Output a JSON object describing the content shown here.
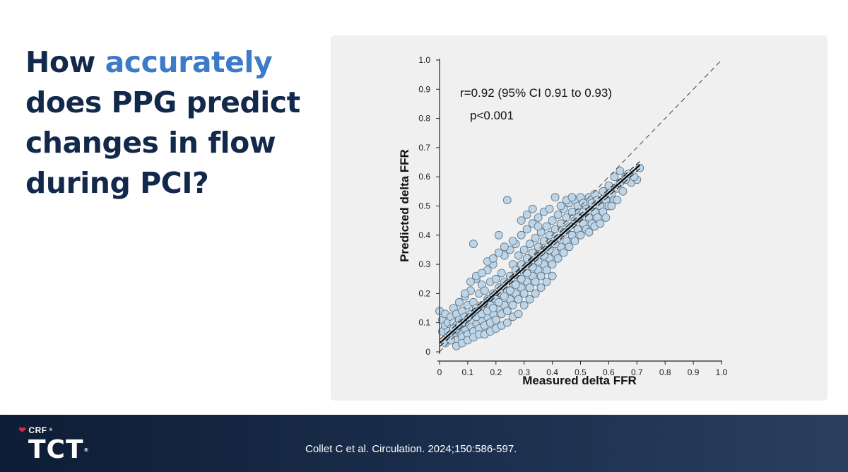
{
  "slide": {
    "title_part1": "How ",
    "title_accent": "accurately",
    "title_part2": " does PPG predict changes in flow during PCI?",
    "accent_color": "#3b7bc8",
    "title_color": "#13294b"
  },
  "footer": {
    "crf_label": "CRF",
    "crf_mark": "®",
    "tct_label": "TCT",
    "tct_mark": "®",
    "citation": "Collet C et al. Circulation. 2024;150:586-597."
  },
  "chart_data": {
    "type": "scatter",
    "xlabel": "Measured delta FFR",
    "ylabel": "Predicted delta FFR",
    "xlim": [
      0,
      1.0
    ],
    "ylim": [
      0,
      1.0
    ],
    "x_ticks": [
      "0",
      "0.1",
      "0.2",
      "0.3",
      "0.4",
      "0.5",
      "0.6",
      "0.7",
      "0.8",
      "0.9",
      "1.0"
    ],
    "y_ticks": [
      "0",
      "0.1",
      "0.2",
      "0.3",
      "0.4",
      "0.5",
      "0.6",
      "0.7",
      "0.8",
      "0.9",
      "1.0"
    ],
    "grid": false,
    "annotations": [
      "r=0.92 (95% CI 0.91 to 0.93)",
      "p<0.001"
    ],
    "point_color": "#bcd5e8",
    "identity_line": {
      "x": [
        0,
        1.0
      ],
      "y": [
        0,
        1.0
      ],
      "style": "dashed"
    },
    "regression_line": {
      "x": [
        0,
        0.71
      ],
      "y": [
        0.03,
        0.64
      ]
    },
    "points": [
      [
        0.0,
        0.14
      ],
      [
        0.01,
        0.11
      ],
      [
        0.01,
        0.07
      ],
      [
        0.02,
        0.09
      ],
      [
        0.02,
        0.13
      ],
      [
        0.03,
        0.05
      ],
      [
        0.03,
        0.1
      ],
      [
        0.04,
        0.08
      ],
      [
        0.04,
        0.12
      ],
      [
        0.05,
        0.06
      ],
      [
        0.05,
        0.1
      ],
      [
        0.05,
        0.15
      ],
      [
        0.06,
        0.04
      ],
      [
        0.06,
        0.09
      ],
      [
        0.06,
        0.13
      ],
      [
        0.07,
        0.07
      ],
      [
        0.07,
        0.11
      ],
      [
        0.07,
        0.17
      ],
      [
        0.08,
        0.05
      ],
      [
        0.08,
        0.1
      ],
      [
        0.08,
        0.14
      ],
      [
        0.09,
        0.08
      ],
      [
        0.09,
        0.12
      ],
      [
        0.09,
        0.19
      ],
      [
        0.1,
        0.06
      ],
      [
        0.1,
        0.11
      ],
      [
        0.1,
        0.16
      ],
      [
        0.11,
        0.09
      ],
      [
        0.11,
        0.13
      ],
      [
        0.11,
        0.21
      ],
      [
        0.12,
        0.07
      ],
      [
        0.12,
        0.12
      ],
      [
        0.12,
        0.17
      ],
      [
        0.13,
        0.1
      ],
      [
        0.13,
        0.15
      ],
      [
        0.13,
        0.25
      ],
      [
        0.14,
        0.08
      ],
      [
        0.14,
        0.14
      ],
      [
        0.14,
        0.2
      ],
      [
        0.15,
        0.11
      ],
      [
        0.15,
        0.16
      ],
      [
        0.15,
        0.23
      ],
      [
        0.16,
        0.09
      ],
      [
        0.16,
        0.15
      ],
      [
        0.16,
        0.21
      ],
      [
        0.17,
        0.12
      ],
      [
        0.17,
        0.18
      ],
      [
        0.17,
        0.28
      ],
      [
        0.18,
        0.1
      ],
      [
        0.18,
        0.16
      ],
      [
        0.18,
        0.24
      ],
      [
        0.19,
        0.13
      ],
      [
        0.19,
        0.2
      ],
      [
        0.19,
        0.3
      ],
      [
        0.2,
        0.11
      ],
      [
        0.2,
        0.18
      ],
      [
        0.2,
        0.25
      ],
      [
        0.21,
        0.15
      ],
      [
        0.21,
        0.22
      ],
      [
        0.21,
        0.4
      ],
      [
        0.22,
        0.13
      ],
      [
        0.22,
        0.2
      ],
      [
        0.22,
        0.27
      ],
      [
        0.23,
        0.16
      ],
      [
        0.23,
        0.24
      ],
      [
        0.23,
        0.33
      ],
      [
        0.24,
        0.14
      ],
      [
        0.24,
        0.21
      ],
      [
        0.24,
        0.52
      ],
      [
        0.25,
        0.18
      ],
      [
        0.25,
        0.26
      ],
      [
        0.25,
        0.35
      ],
      [
        0.26,
        0.16
      ],
      [
        0.26,
        0.23
      ],
      [
        0.26,
        0.3
      ],
      [
        0.27,
        0.2
      ],
      [
        0.27,
        0.28
      ],
      [
        0.27,
        0.37
      ],
      [
        0.28,
        0.18
      ],
      [
        0.28,
        0.25
      ],
      [
        0.28,
        0.33
      ],
      [
        0.29,
        0.22
      ],
      [
        0.29,
        0.3
      ],
      [
        0.29,
        0.4
      ],
      [
        0.3,
        0.2
      ],
      [
        0.3,
        0.27
      ],
      [
        0.3,
        0.35
      ],
      [
        0.31,
        0.24
      ],
      [
        0.31,
        0.32
      ],
      [
        0.31,
        0.42
      ],
      [
        0.32,
        0.22
      ],
      [
        0.32,
        0.29
      ],
      [
        0.32,
        0.37
      ],
      [
        0.33,
        0.26
      ],
      [
        0.33,
        0.34
      ],
      [
        0.33,
        0.44
      ],
      [
        0.34,
        0.24
      ],
      [
        0.34,
        0.31
      ],
      [
        0.34,
        0.39
      ],
      [
        0.35,
        0.28
      ],
      [
        0.35,
        0.36
      ],
      [
        0.35,
        0.46
      ],
      [
        0.36,
        0.26
      ],
      [
        0.36,
        0.33
      ],
      [
        0.36,
        0.41
      ],
      [
        0.37,
        0.3
      ],
      [
        0.37,
        0.38
      ],
      [
        0.37,
        0.48
      ],
      [
        0.38,
        0.28
      ],
      [
        0.38,
        0.35
      ],
      [
        0.38,
        0.43
      ],
      [
        0.39,
        0.32
      ],
      [
        0.39,
        0.4
      ],
      [
        0.4,
        0.3
      ],
      [
        0.4,
        0.37
      ],
      [
        0.4,
        0.45
      ],
      [
        0.41,
        0.34
      ],
      [
        0.41,
        0.42
      ],
      [
        0.41,
        0.53
      ],
      [
        0.42,
        0.32
      ],
      [
        0.42,
        0.39
      ],
      [
        0.42,
        0.47
      ],
      [
        0.43,
        0.36
      ],
      [
        0.43,
        0.44
      ],
      [
        0.44,
        0.34
      ],
      [
        0.44,
        0.41
      ],
      [
        0.44,
        0.49
      ],
      [
        0.45,
        0.38
      ],
      [
        0.45,
        0.46
      ],
      [
        0.46,
        0.36
      ],
      [
        0.46,
        0.43
      ],
      [
        0.46,
        0.51
      ],
      [
        0.47,
        0.4
      ],
      [
        0.47,
        0.48
      ],
      [
        0.48,
        0.38
      ],
      [
        0.48,
        0.45
      ],
      [
        0.48,
        0.52
      ],
      [
        0.49,
        0.42
      ],
      [
        0.49,
        0.5
      ],
      [
        0.5,
        0.4
      ],
      [
        0.5,
        0.47
      ],
      [
        0.5,
        0.53
      ],
      [
        0.51,
        0.44
      ],
      [
        0.51,
        0.51
      ],
      [
        0.52,
        0.42
      ],
      [
        0.52,
        0.49
      ],
      [
        0.53,
        0.46
      ],
      [
        0.53,
        0.53
      ],
      [
        0.54,
        0.44
      ],
      [
        0.54,
        0.51
      ],
      [
        0.55,
        0.48
      ],
      [
        0.55,
        0.54
      ],
      [
        0.56,
        0.46
      ],
      [
        0.56,
        0.52
      ],
      [
        0.57,
        0.5
      ],
      [
        0.58,
        0.48
      ],
      [
        0.58,
        0.55
      ],
      [
        0.59,
        0.52
      ],
      [
        0.6,
        0.5
      ],
      [
        0.6,
        0.57
      ],
      [
        0.61,
        0.54
      ],
      [
        0.62,
        0.52
      ],
      [
        0.62,
        0.6
      ],
      [
        0.63,
        0.56
      ],
      [
        0.64,
        0.58
      ],
      [
        0.65,
        0.55
      ],
      [
        0.66,
        0.6
      ],
      [
        0.68,
        0.58
      ],
      [
        0.7,
        0.59
      ],
      [
        0.71,
        0.63
      ],
      [
        0.02,
        0.03
      ],
      [
        0.04,
        0.04
      ],
      [
        0.06,
        0.02
      ],
      [
        0.08,
        0.03
      ],
      [
        0.1,
        0.04
      ],
      [
        0.12,
        0.05
      ],
      [
        0.14,
        0.06
      ],
      [
        0.16,
        0.06
      ],
      [
        0.18,
        0.07
      ],
      [
        0.2,
        0.08
      ],
      [
        0.22,
        0.09
      ],
      [
        0.24,
        0.1
      ],
      [
        0.26,
        0.12
      ],
      [
        0.28,
        0.13
      ],
      [
        0.3,
        0.16
      ],
      [
        0.32,
        0.18
      ],
      [
        0.34,
        0.2
      ],
      [
        0.36,
        0.22
      ],
      [
        0.38,
        0.24
      ],
      [
        0.4,
        0.26
      ],
      [
        0.09,
        0.2
      ],
      [
        0.11,
        0.24
      ],
      [
        0.13,
        0.26
      ],
      [
        0.15,
        0.27
      ],
      [
        0.17,
        0.31
      ],
      [
        0.19,
        0.32
      ],
      [
        0.21,
        0.34
      ],
      [
        0.23,
        0.36
      ],
      [
        0.12,
        0.37
      ],
      [
        0.26,
        0.38
      ],
      [
        0.29,
        0.45
      ],
      [
        0.31,
        0.47
      ],
      [
        0.33,
        0.49
      ],
      [
        0.35,
        0.43
      ],
      [
        0.39,
        0.49
      ],
      [
        0.43,
        0.5
      ],
      [
        0.45,
        0.52
      ],
      [
        0.47,
        0.53
      ],
      [
        0.49,
        0.46
      ],
      [
        0.51,
        0.48
      ],
      [
        0.53,
        0.41
      ],
      [
        0.55,
        0.43
      ],
      [
        0.57,
        0.44
      ],
      [
        0.59,
        0.46
      ],
      [
        0.61,
        0.5
      ],
      [
        0.63,
        0.52
      ],
      [
        0.67,
        0.61
      ],
      [
        0.69,
        0.6
      ],
      [
        0.64,
        0.62
      ],
      [
        0.66,
        0.59
      ],
      [
        0.03,
        0.07
      ],
      [
        0.05,
        0.08
      ],
      [
        0.07,
        0.09
      ],
      [
        0.09,
        0.1
      ],
      [
        0.11,
        0.11
      ],
      [
        0.13,
        0.12
      ],
      [
        0.15,
        0.13
      ],
      [
        0.17,
        0.14
      ],
      [
        0.19,
        0.15
      ],
      [
        0.21,
        0.17
      ],
      [
        0.23,
        0.19
      ],
      [
        0.25,
        0.21
      ],
      [
        0.27,
        0.23
      ],
      [
        0.29,
        0.25
      ],
      [
        0.31,
        0.27
      ],
      [
        0.33,
        0.29
      ],
      [
        0.35,
        0.31
      ],
      [
        0.37,
        0.33
      ],
      [
        0.39,
        0.35
      ],
      [
        0.41,
        0.37
      ]
    ]
  }
}
